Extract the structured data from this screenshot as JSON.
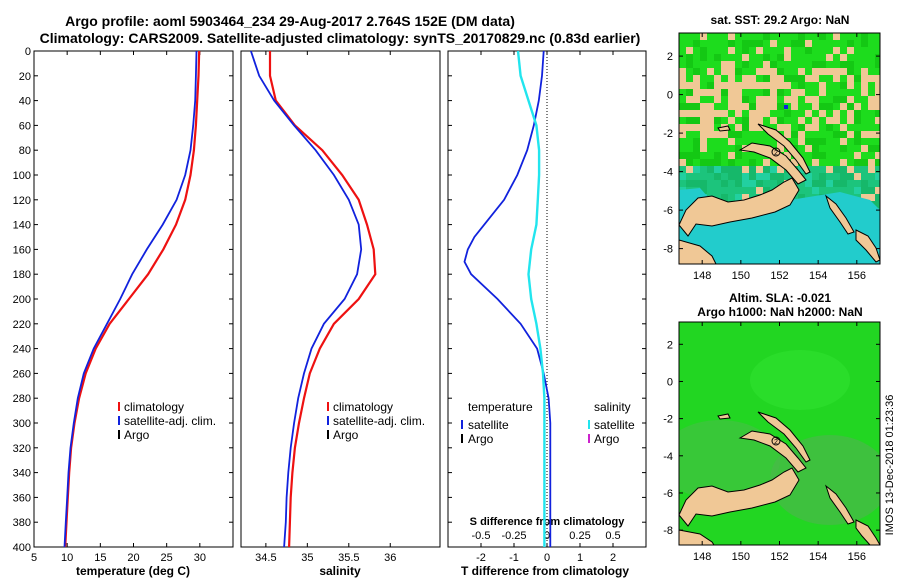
{
  "title_line1": "Argo profile: aoml 5903464_234 29-Aug-2017 2.764S 152E (DM data)",
  "title_line2": "Climatology: CARS2009. Satellite-adjusted climatology: synTS_20170829.nc (0.83d earlier)",
  "timestamp": "IMOS 13-Dec-2018 01:23:36",
  "colors": {
    "climatology": "#ee1111",
    "satellite": "#1122dd",
    "argo": "#000000",
    "sal_satellite": "#22e5ee",
    "sal_argo": "#cc22cc",
    "land": "#f0c896",
    "sea_green": "#1ddc1d",
    "teal": "#22cccc"
  },
  "chart_data": [
    {
      "type": "line",
      "id": "temperature",
      "xlabel": "temperature (deg C)",
      "ylabel": "",
      "xlim": [
        5,
        35
      ],
      "ylim": [
        400,
        0
      ],
      "xticks": [
        5,
        10,
        15,
        20,
        25,
        30
      ],
      "yticks": [
        0,
        20,
        40,
        60,
        80,
        100,
        120,
        140,
        160,
        180,
        200,
        220,
        240,
        260,
        280,
        300,
        320,
        340,
        360,
        380,
        400
      ],
      "legend": [
        "climatology",
        "satellite-adj. clim.",
        "Argo"
      ],
      "series": [
        {
          "name": "climatology",
          "depth": [
            0,
            20,
            40,
            60,
            80,
            100,
            120,
            140,
            160,
            180,
            200,
            220,
            240,
            260,
            280,
            300,
            320,
            340,
            360,
            380,
            400
          ],
          "values": [
            29.9,
            29.8,
            29.6,
            29.4,
            29.1,
            28.6,
            27.8,
            26.4,
            24.5,
            22.2,
            19.3,
            16.4,
            14.3,
            12.8,
            11.8,
            11.1,
            10.6,
            10.3,
            10.1,
            9.9,
            9.7
          ]
        },
        {
          "name": "satellite-adj. clim.",
          "depth": [
            0,
            20,
            40,
            60,
            80,
            100,
            120,
            140,
            160,
            180,
            200,
            220,
            240,
            260,
            280,
            300,
            320,
            340,
            360,
            380,
            400
          ],
          "values": [
            29.5,
            29.4,
            29.3,
            29.0,
            28.6,
            27.8,
            26.5,
            24.4,
            22.0,
            19.8,
            18.0,
            16.0,
            14.0,
            12.5,
            11.6,
            11.0,
            10.5,
            10.2,
            10.0,
            9.8,
            9.6
          ]
        }
      ]
    },
    {
      "type": "line",
      "id": "salinity",
      "xlabel": "salinity",
      "xlim": [
        34.2,
        36.6
      ],
      "ylim": [
        400,
        0
      ],
      "xticks": [
        34.5,
        35,
        35.5,
        36
      ],
      "legend": [
        "climatology",
        "satellite-adj. clim.",
        "Argo"
      ],
      "series": [
        {
          "name": "climatology",
          "depth": [
            0,
            20,
            40,
            60,
            80,
            100,
            120,
            140,
            160,
            180,
            200,
            220,
            240,
            260,
            280,
            300,
            320,
            340,
            360,
            380,
            400
          ],
          "values": [
            34.55,
            34.55,
            34.62,
            34.85,
            35.18,
            35.42,
            35.62,
            35.72,
            35.8,
            35.82,
            35.62,
            35.32,
            35.15,
            35.03,
            34.96,
            34.9,
            34.85,
            34.82,
            34.8,
            34.79,
            34.78
          ]
        },
        {
          "name": "satellite-adj. clim.",
          "depth": [
            0,
            20,
            40,
            60,
            80,
            100,
            120,
            140,
            160,
            180,
            200,
            220,
            240,
            260,
            280,
            300,
            320,
            340,
            360,
            380,
            400
          ],
          "values": [
            34.32,
            34.42,
            34.6,
            34.84,
            35.1,
            35.32,
            35.5,
            35.62,
            35.65,
            35.6,
            35.45,
            35.2,
            35.05,
            34.96,
            34.89,
            34.84,
            34.8,
            34.77,
            34.75,
            34.74,
            34.72
          ]
        }
      ]
    },
    {
      "type": "line",
      "id": "difference",
      "xlabel": "T difference from climatology",
      "x2label": "S difference from climatology",
      "xlim": [
        -3,
        3
      ],
      "x2lim": [
        -0.75,
        0.75
      ],
      "ylim": [
        400,
        0
      ],
      "xticks": [
        -2,
        -1,
        0,
        1,
        2
      ],
      "x2ticks": [
        -0.5,
        -0.25,
        0,
        0.25,
        0.5
      ],
      "legend_temperature_title": "temperature",
      "legend_salinity_title": "salinity",
      "legend_temperature": [
        "satellite",
        "Argo"
      ],
      "legend_salinity": [
        "satellite",
        "Argo"
      ],
      "series": [
        {
          "name": "temperature satellite",
          "depth": [
            0,
            20,
            40,
            60,
            80,
            100,
            120,
            140,
            150,
            160,
            170,
            180,
            200,
            220,
            240,
            260,
            280,
            300,
            320,
            340,
            360,
            380,
            400
          ],
          "values": [
            -0.1,
            -0.15,
            -0.25,
            -0.4,
            -0.6,
            -0.9,
            -1.3,
            -1.9,
            -2.2,
            -2.4,
            -2.5,
            -2.3,
            -1.5,
            -0.8,
            -0.3,
            -0.1,
            0.05,
            0.1,
            0.1,
            0.1,
            0.1,
            0.1,
            0.1
          ]
        },
        {
          "name": "salinity satellite",
          "depth": [
            0,
            20,
            40,
            60,
            80,
            100,
            120,
            140,
            160,
            180,
            200,
            220,
            240,
            260,
            280,
            300,
            320,
            340,
            360,
            380,
            400
          ],
          "values": [
            -0.22,
            -0.2,
            -0.14,
            -0.08,
            -0.06,
            -0.06,
            -0.07,
            -0.08,
            -0.12,
            -0.14,
            -0.12,
            -0.08,
            -0.05,
            -0.03,
            -0.02,
            -0.02,
            -0.02,
            -0.02,
            -0.02,
            -0.02,
            -0.02
          ]
        }
      ]
    },
    {
      "type": "heatmap",
      "id": "sst_map",
      "title": "sat. SST: 29.2 Argo: NaN",
      "xticks": [
        148,
        150,
        152,
        154,
        156
      ],
      "yticks": [
        2,
        0,
        -2,
        -4,
        -6,
        -8
      ],
      "xlim": [
        146.8,
        157.2
      ],
      "ylim": [
        -8.8,
        3.2
      ],
      "marker": "2"
    },
    {
      "type": "heatmap",
      "id": "sla_map",
      "title_line1": "Altim. SLA: -0.021",
      "title_line2": "Argo h1000: NaN h2000: NaN",
      "xticks": [
        148,
        150,
        152,
        154,
        156
      ],
      "yticks": [
        2,
        0,
        -2,
        -4,
        -6,
        -8
      ],
      "xlim": [
        146.8,
        157.2
      ],
      "ylim": [
        -8.8,
        3.2
      ],
      "marker": "2"
    }
  ]
}
